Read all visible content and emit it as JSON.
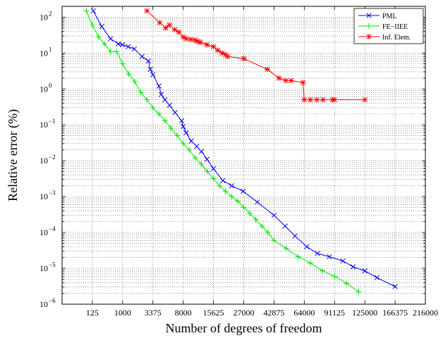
{
  "chart_data": {
    "type": "line",
    "xlabel": "Number of degrees of freedom",
    "ylabel": "Relative error  (%)",
    "x_scale": "cube-root",
    "y_scale": "log",
    "xlim": [
      0,
      216000
    ],
    "ylim": [
      1e-06,
      200
    ],
    "grid": true,
    "legend_position": "top-right",
    "x_ticks": [
      {
        "value": 125,
        "label": "125"
      },
      {
        "value": 1000,
        "label": "1000"
      },
      {
        "value": 3375,
        "label": "3375"
      },
      {
        "value": 8000,
        "label": "8000"
      },
      {
        "value": 15625,
        "label": "15625"
      },
      {
        "value": 27000,
        "label": "27000"
      },
      {
        "value": 42875,
        "label": "42875"
      },
      {
        "value": 64000,
        "label": "64000"
      },
      {
        "value": 91125,
        "label": "91125"
      },
      {
        "value": 125000,
        "label": "125000"
      },
      {
        "value": 166375,
        "label": "166375"
      },
      {
        "value": 216000,
        "label": "216000"
      }
    ],
    "y_ticks": [
      {
        "value": 1e-06,
        "base": "10",
        "exp": "−6"
      },
      {
        "value": 1e-05,
        "base": "10",
        "exp": "−5"
      },
      {
        "value": 0.0001,
        "base": "10",
        "exp": "−4"
      },
      {
        "value": 0.001,
        "base": "10",
        "exp": "−3"
      },
      {
        "value": 0.01,
        "base": "10",
        "exp": "−2"
      },
      {
        "value": 0.1,
        "base": "10",
        "exp": "−1"
      },
      {
        "value": 1,
        "base": "10",
        "exp": "0"
      },
      {
        "value": 10,
        "base": "10",
        "exp": "1"
      },
      {
        "value": 100,
        "base": "10",
        "exp": "2"
      }
    ],
    "series": [
      {
        "name": "PML",
        "color": "#0000ff",
        "marker": "x",
        "x": [
          137,
          280,
          512,
          800,
          1000,
          1300,
          1700,
          2300,
          2900,
          3100,
          3375,
          4100,
          4400,
          4900,
          5600,
          6500,
          7700,
          8000,
          8600,
          9700,
          11000,
          12200,
          13700,
          15625,
          18700,
          22000,
          26800,
          33500,
          42875,
          50000,
          56900,
          66000,
          75000,
          86000,
          99700,
          111000,
          125000,
          140600,
          166375
        ],
        "y": [
          150,
          55,
          25,
          18,
          17,
          15,
          13,
          8,
          6,
          3.5,
          2.5,
          1.2,
          0.7,
          0.5,
          0.35,
          0.22,
          0.13,
          0.09,
          0.06,
          0.035,
          0.025,
          0.018,
          0.011,
          0.006,
          0.0028,
          0.002,
          0.0014,
          0.0007,
          0.0003,
          0.00015,
          8e-05,
          4e-05,
          2.6e-05,
          2.1e-05,
          1.6e-05,
          1.1e-05,
          8.5e-06,
          5.5e-06,
          3.1e-06
        ]
      },
      {
        "name": "FE−IIEE",
        "color": "#00e600",
        "marker": "+",
        "x": [
          64,
          125,
          216,
          343,
          512,
          729,
          1000,
          1331,
          1728,
          2197,
          2744,
          3375,
          4096,
          4913,
          5832,
          6859,
          8000,
          9261,
          10648,
          12167,
          13824,
          15625,
          17576,
          19683,
          21952,
          24389,
          27000,
          29791,
          32768,
          35937,
          39304,
          42875,
          50653,
          59319,
          68921,
          79507,
          91125,
          103823,
          117649
        ],
        "y": [
          150,
          60,
          28,
          18,
          11,
          11,
          5,
          2.6,
          1.6,
          0.8,
          0.5,
          0.3,
          0.2,
          0.13,
          0.08,
          0.05,
          0.03,
          0.02,
          0.012,
          0.008,
          0.005,
          0.0032,
          0.002,
          0.0014,
          0.001,
          0.00075,
          0.0005,
          0.00034,
          0.00023,
          0.00015,
          0.0001,
          6e-05,
          3.6e-05,
          2.1e-05,
          1.4e-05,
          8.5e-06,
          6e-06,
          3.8e-06,
          2.2e-06
        ]
      },
      {
        "name": "Inf. Elem.",
        "color": "#ff0000",
        "marker": "*",
        "x": [
          2750,
          4200,
          5000,
          5600,
          6400,
          7200,
          8000,
          8600,
          9600,
          10600,
          11200,
          11900,
          13700,
          15625,
          17000,
          18500,
          19700,
          20500,
          27000,
          39000,
          46000,
          50600,
          54200,
          63000,
          64000,
          69000,
          74500,
          80000,
          89000,
          91125,
          125000
        ],
        "y": [
          150,
          70,
          50,
          60,
          45,
          38,
          28,
          25,
          24,
          23,
          21,
          20,
          17,
          15,
          12,
          10,
          9,
          8,
          7,
          3.5,
          2,
          1.7,
          1.7,
          1.5,
          0.5,
          0.5,
          0.5,
          0.5,
          0.5,
          0.5,
          0.5
        ]
      }
    ]
  }
}
